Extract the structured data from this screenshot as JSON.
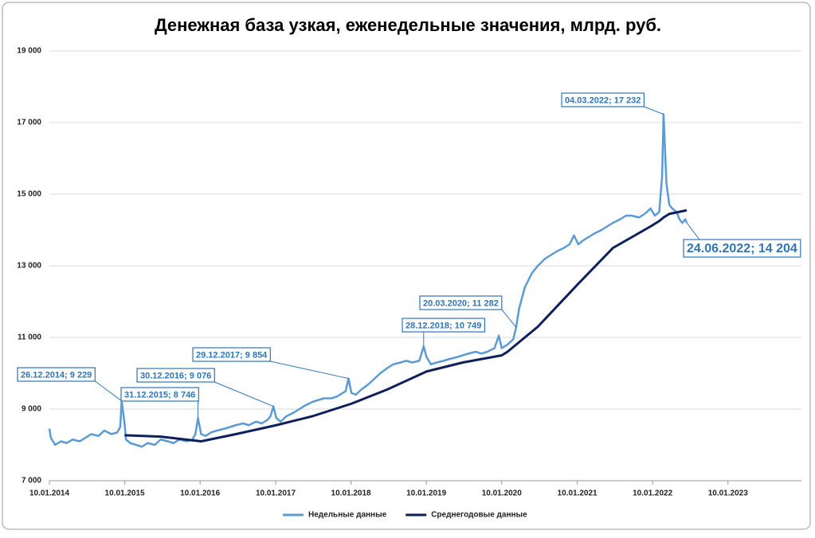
{
  "chart_data": {
    "type": "line",
    "title": "Денежная база узкая, еженедельные значения, млрд. руб.",
    "xlim": [
      "10.01.2014",
      "01.01.2024"
    ],
    "xticks": [
      "10.01.2014",
      "10.01.2015",
      "10.01.2016",
      "10.01.2017",
      "10.01.2018",
      "10.01.2019",
      "10.01.2020",
      "10.01.2021",
      "10.01.2022",
      "10.01.2023"
    ],
    "ylim": [
      7000,
      19000
    ],
    "yticks": [
      {
        "value": 7000,
        "label": "7 000"
      },
      {
        "value": 9000,
        "label": "9 000"
      },
      {
        "value": 11000,
        "label": "11 000"
      },
      {
        "value": 13000,
        "label": "13 000"
      },
      {
        "value": 15000,
        "label": "15 000"
      },
      {
        "value": 17000,
        "label": "17 000"
      },
      {
        "value": 19000,
        "label": "19 000"
      }
    ],
    "grid": true,
    "legend": "bottom",
    "series": [
      {
        "name": "Недельные данные",
        "color": "#5b9bd5",
        "x": [
          "10.01.2014",
          "17.01.2014",
          "07.02.2014",
          "07.03.2014",
          "04.04.2014",
          "02.05.2014",
          "06.06.2014",
          "04.07.2014",
          "01.08.2014",
          "05.09.2014",
          "03.10.2014",
          "07.11.2014",
          "05.12.2014",
          "19.12.2014",
          "26.12.2014",
          "09.01.2015",
          "16.01.2015",
          "06.02.2015",
          "06.03.2015",
          "03.04.2015",
          "01.05.2015",
          "05.06.2015",
          "03.07.2015",
          "07.08.2015",
          "04.09.2015",
          "02.10.2015",
          "06.11.2015",
          "04.12.2015",
          "18.12.2015",
          "31.12.2015",
          "15.01.2016",
          "05.02.2016",
          "04.03.2016",
          "01.04.2016",
          "06.05.2016",
          "03.06.2016",
          "01.07.2016",
          "05.08.2016",
          "02.09.2016",
          "07.10.2016",
          "04.11.2016",
          "02.12.2016",
          "16.12.2016",
          "30.12.2016",
          "13.01.2017",
          "03.02.2017",
          "03.03.2017",
          "07.04.2017",
          "05.05.2017",
          "02.06.2017",
          "07.07.2017",
          "04.08.2017",
          "01.09.2017",
          "06.10.2017",
          "03.11.2017",
          "01.12.2017",
          "15.12.2017",
          "29.12.2017",
          "12.01.2018",
          "02.02.2018",
          "02.03.2018",
          "06.04.2018",
          "04.05.2018",
          "01.06.2018",
          "06.07.2018",
          "03.08.2018",
          "07.09.2018",
          "05.10.2018",
          "02.11.2018",
          "07.12.2018",
          "28.12.2018",
          "11.01.2019",
          "01.02.2019",
          "01.03.2019",
          "05.04.2019",
          "03.05.2019",
          "07.06.2019",
          "05.07.2019",
          "02.08.2019",
          "06.09.2019",
          "04.10.2019",
          "01.11.2019",
          "06.12.2019",
          "27.12.2019",
          "10.01.2020",
          "07.02.2020",
          "06.03.2020",
          "20.03.2020",
          "03.04.2020",
          "01.05.2020",
          "05.06.2020",
          "03.07.2020",
          "07.08.2020",
          "04.09.2020",
          "02.10.2020",
          "06.11.2020",
          "04.12.2020",
          "25.12.2020",
          "15.01.2021",
          "05.02.2021",
          "05.03.2021",
          "02.04.2021",
          "07.05.2021",
          "04.06.2021",
          "02.07.2021",
          "06.08.2021",
          "03.09.2021",
          "01.10.2021",
          "05.11.2021",
          "03.12.2021",
          "31.12.2021",
          "21.01.2022",
          "11.02.2022",
          "25.02.2022",
          "04.03.2022",
          "18.03.2022",
          "01.04.2022",
          "15.04.2022",
          "06.05.2022",
          "20.05.2022",
          "03.06.2022",
          "17.06.2022",
          "24.06.2022"
        ],
        "values": [
          8450,
          8200,
          8000,
          8100,
          8050,
          8150,
          8100,
          8200,
          8300,
          8250,
          8400,
          8300,
          8350,
          8500,
          9229,
          8600,
          8150,
          8050,
          8000,
          7950,
          8050,
          8000,
          8150,
          8100,
          8050,
          8150,
          8100,
          8150,
          8300,
          8746,
          8300,
          8250,
          8350,
          8400,
          8450,
          8500,
          8550,
          8600,
          8550,
          8650,
          8600,
          8700,
          8800,
          9076,
          8750,
          8650,
          8800,
          8900,
          9000,
          9100,
          9200,
          9250,
          9300,
          9300,
          9350,
          9450,
          9500,
          9854,
          9450,
          9400,
          9550,
          9700,
          9850,
          10000,
          10150,
          10250,
          10300,
          10350,
          10300,
          10350,
          10749,
          10450,
          10250,
          10300,
          10350,
          10400,
          10450,
          10500,
          10550,
          10600,
          10550,
          10600,
          10700,
          11050,
          10700,
          10800,
          10950,
          11282,
          11800,
          12400,
          12800,
          13000,
          13200,
          13300,
          13400,
          13500,
          13600,
          13850,
          13600,
          13700,
          13800,
          13900,
          14000,
          14100,
          14200,
          14300,
          14400,
          14400,
          14350,
          14450,
          14600,
          14400,
          14500,
          15500,
          17232,
          15300,
          14700,
          14600,
          14500,
          14300,
          14200,
          14300,
          14204
        ]
      },
      {
        "name": "Среднегодовые данные",
        "color": "#0d1f5c",
        "x": [
          "09.01.2015",
          "03.07.2015",
          "15.01.2016",
          "01.07.2016",
          "13.01.2017",
          "07.07.2017",
          "12.01.2018",
          "06.07.2018",
          "11.01.2019",
          "05.07.2019",
          "10.01.2020",
          "07.02.2020",
          "03.07.2020",
          "15.01.2021",
          "02.07.2021",
          "31.12.2021",
          "11.02.2022",
          "04.03.2022",
          "01.04.2022",
          "24.06.2022"
        ],
        "values": [
          8270,
          8230,
          8100,
          8300,
          8550,
          8800,
          9150,
          9550,
          10050,
          10300,
          10500,
          10600,
          11300,
          12500,
          13500,
          14100,
          14250,
          14350,
          14450,
          14550
        ]
      }
    ],
    "annotations": [
      {
        "label": "26.12.2014; 9 229",
        "x": "26.12.2014",
        "value": 9229
      },
      {
        "label": "31.12.2015; 8 746",
        "x": "31.12.2015",
        "value": 8746
      },
      {
        "label": "30.12.2016; 9 076",
        "x": "30.12.2016",
        "value": 9076
      },
      {
        "label": "29.12.2017; 9 854",
        "x": "29.12.2017",
        "value": 9854
      },
      {
        "label": "28.12.2018; 10 749",
        "x": "28.12.2018",
        "value": 10749
      },
      {
        "label": "20.03.2020; 11 282",
        "x": "20.03.2020",
        "value": 11282
      },
      {
        "label": "04.03.2022; 17 232",
        "x": "04.03.2022",
        "value": 17232
      },
      {
        "label": "24.06.2022; 14 204",
        "x": "24.06.2022",
        "value": 14204
      }
    ]
  }
}
